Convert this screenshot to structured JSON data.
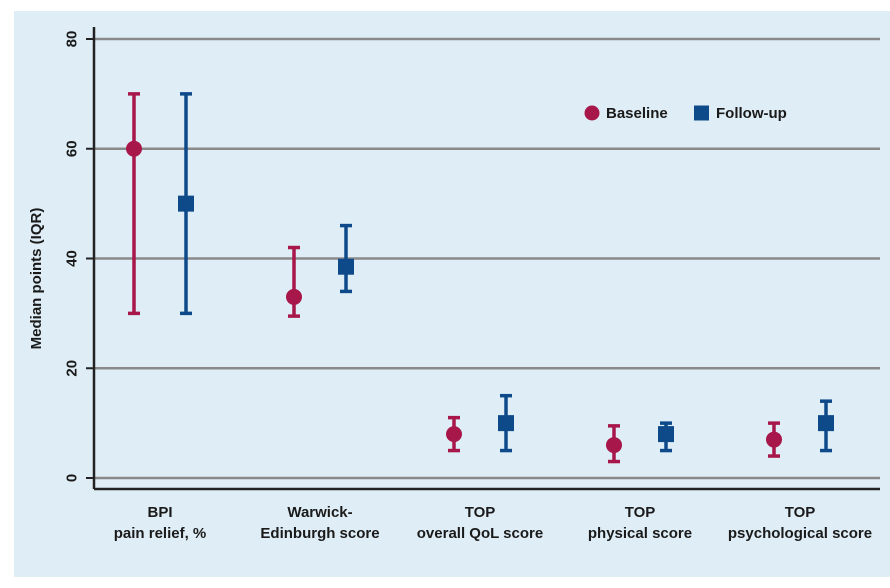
{
  "chart_data": {
    "type": "scatter",
    "title": "",
    "ylabel": "Median points (IQR)",
    "xlabel": "",
    "ylim": [
      0,
      80
    ],
    "yticks": [
      0,
      20,
      40,
      60,
      80
    ],
    "grid": true,
    "legend_position": "top-right",
    "categories": [
      [
        "BPI",
        "pain relief, %"
      ],
      [
        "Warwick-",
        "Edinburgh score"
      ],
      [
        "TOP",
        "overall QoL score"
      ],
      [
        "TOP",
        "physical score"
      ],
      [
        "TOP",
        "psychological score"
      ]
    ],
    "series": [
      {
        "name": "Baseline",
        "marker": "circle",
        "color": "#a8174a",
        "median": [
          60,
          33,
          8,
          6,
          7
        ],
        "lower": [
          30,
          29.5,
          5,
          3,
          4
        ],
        "upper": [
          70,
          42,
          11,
          9.5,
          10
        ]
      },
      {
        "name": "Follow-up",
        "marker": "square",
        "color": "#0e4a8a",
        "median": [
          50,
          38.5,
          10,
          8,
          10
        ],
        "lower": [
          30,
          34,
          5,
          5,
          5
        ],
        "upper": [
          70,
          46,
          15,
          10,
          14
        ]
      }
    ]
  }
}
